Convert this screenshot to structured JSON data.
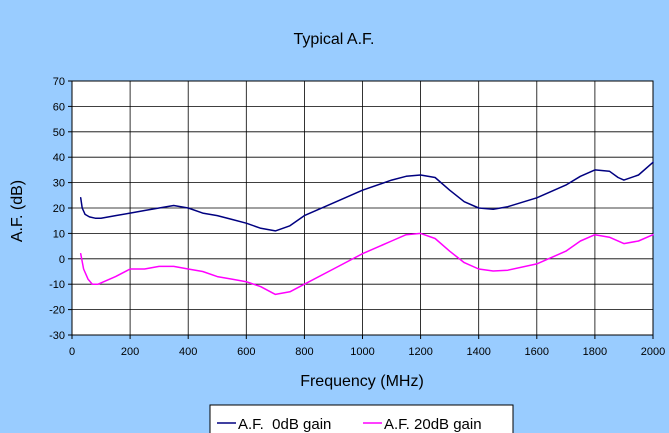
{
  "chart_data": {
    "type": "line",
    "title": "Typical A.F.",
    "xlabel": "Frequency (MHz)",
    "ylabel": "A.F. (dB)",
    "xlim": [
      0,
      2000
    ],
    "ylim": [
      -30,
      70
    ],
    "x_ticks": [
      0,
      200,
      400,
      600,
      800,
      1000,
      1200,
      1400,
      1600,
      1800,
      2000
    ],
    "y_ticks": [
      -30,
      -20,
      -10,
      0,
      10,
      20,
      30,
      40,
      50,
      60,
      70
    ],
    "grid": true,
    "legend_position": "bottom",
    "colors": {
      "background": "#99ccff",
      "plot_area": "#ffffff",
      "grid": "#000000"
    },
    "series": [
      {
        "name": "A.F.  0dB gain",
        "color": "#000080",
        "points": [
          [
            30,
            24
          ],
          [
            35,
            20
          ],
          [
            45,
            17.5
          ],
          [
            60,
            16.5
          ],
          [
            80,
            16
          ],
          [
            100,
            16
          ],
          [
            150,
            17
          ],
          [
            200,
            18
          ],
          [
            250,
            19
          ],
          [
            300,
            20
          ],
          [
            350,
            21
          ],
          [
            400,
            20
          ],
          [
            450,
            18
          ],
          [
            500,
            17
          ],
          [
            550,
            15.5
          ],
          [
            600,
            14
          ],
          [
            650,
            12
          ],
          [
            700,
            11
          ],
          [
            750,
            13
          ],
          [
            800,
            17
          ],
          [
            900,
            22
          ],
          [
            1000,
            27
          ],
          [
            1100,
            31
          ],
          [
            1150,
            32.5
          ],
          [
            1200,
            33
          ],
          [
            1250,
            32
          ],
          [
            1300,
            27
          ],
          [
            1350,
            22.5
          ],
          [
            1400,
            20
          ],
          [
            1450,
            19.5
          ],
          [
            1500,
            20.5
          ],
          [
            1600,
            24
          ],
          [
            1700,
            29
          ],
          [
            1750,
            32.5
          ],
          [
            1800,
            35
          ],
          [
            1850,
            34.5
          ],
          [
            1880,
            32
          ],
          [
            1900,
            31
          ],
          [
            1950,
            33
          ],
          [
            2000,
            38
          ]
        ]
      },
      {
        "name": "A.F. 20dB gain",
        "color": "#ff00ff",
        "points": [
          [
            30,
            2
          ],
          [
            40,
            -4
          ],
          [
            55,
            -8
          ],
          [
            70,
            -10
          ],
          [
            90,
            -10
          ],
          [
            150,
            -7
          ],
          [
            200,
            -4
          ],
          [
            250,
            -4
          ],
          [
            300,
            -3
          ],
          [
            350,
            -3
          ],
          [
            400,
            -4
          ],
          [
            450,
            -5
          ],
          [
            500,
            -7
          ],
          [
            550,
            -8
          ],
          [
            600,
            -9
          ],
          [
            650,
            -11
          ],
          [
            700,
            -14
          ],
          [
            750,
            -13
          ],
          [
            800,
            -10
          ],
          [
            900,
            -4
          ],
          [
            1000,
            2
          ],
          [
            1100,
            7
          ],
          [
            1150,
            9.5
          ],
          [
            1200,
            10
          ],
          [
            1250,
            8
          ],
          [
            1300,
            3
          ],
          [
            1350,
            -1.5
          ],
          [
            1400,
            -4
          ],
          [
            1450,
            -4.8
          ],
          [
            1500,
            -4.5
          ],
          [
            1600,
            -2
          ],
          [
            1700,
            3
          ],
          [
            1750,
            7
          ],
          [
            1800,
            9.5
          ],
          [
            1850,
            8.5
          ],
          [
            1900,
            6
          ],
          [
            1950,
            7
          ],
          [
            2000,
            9.5
          ]
        ]
      }
    ]
  }
}
